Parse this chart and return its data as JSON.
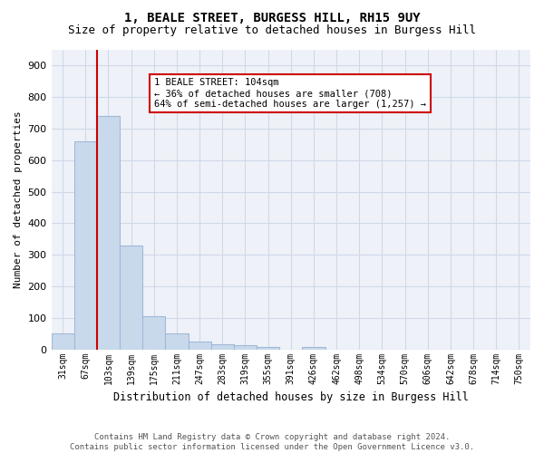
{
  "title": "1, BEALE STREET, BURGESS HILL, RH15 9UY",
  "subtitle": "Size of property relative to detached houses in Burgess Hill",
  "xlabel": "Distribution of detached houses by size in Burgess Hill",
  "ylabel": "Number of detached properties",
  "footer_line1": "Contains HM Land Registry data © Crown copyright and database right 2024.",
  "footer_line2": "Contains public sector information licensed under the Open Government Licence v3.0.",
  "bins": [
    "31sqm",
    "67sqm",
    "103sqm",
    "139sqm",
    "175sqm",
    "211sqm",
    "247sqm",
    "283sqm",
    "319sqm",
    "355sqm",
    "391sqm",
    "426sqm",
    "462sqm",
    "498sqm",
    "534sqm",
    "570sqm",
    "606sqm",
    "642sqm",
    "678sqm",
    "714sqm",
    "750sqm"
  ],
  "values": [
    50,
    660,
    740,
    330,
    105,
    52,
    25,
    15,
    12,
    8,
    0,
    8,
    0,
    0,
    0,
    0,
    0,
    0,
    0,
    0,
    0
  ],
  "bar_color": "#c9d9ec",
  "bar_edge_color": "#a0b8d8",
  "property_line_color": "#cc0000",
  "property_line_x": 1.5,
  "annotation_line1": "1 BEALE STREET: 104sqm",
  "annotation_line2": "← 36% of detached houses are smaller (708)",
  "annotation_line3": "64% of semi-detached houses are larger (1,257) →",
  "annotation_box_color": "#cc0000",
  "annotation_bg": "white",
  "ylim": [
    0,
    950
  ],
  "yticks": [
    0,
    100,
    200,
    300,
    400,
    500,
    600,
    700,
    800,
    900
  ],
  "grid_color": "#d0d8e8",
  "bg_color": "#eef2f8",
  "title_fontsize": 10,
  "subtitle_fontsize": 9,
  "footer_fontsize": 6.5
}
